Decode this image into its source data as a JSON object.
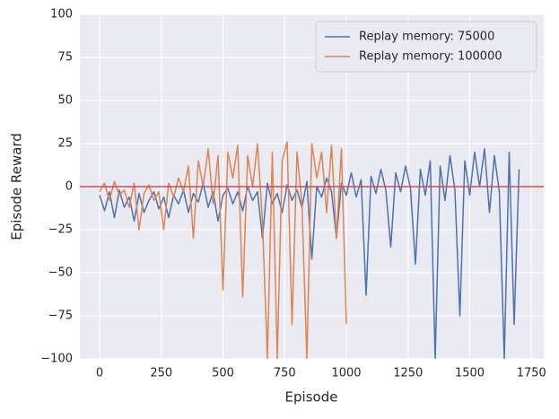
{
  "chart_data": {
    "type": "line",
    "xlabel": "Episode",
    "ylabel": "Episode Reward",
    "xlim": [
      -80,
      1800
    ],
    "ylim": [
      -100,
      100
    ],
    "xticks": [
      0,
      250,
      500,
      750,
      1000,
      1250,
      1500,
      1750
    ],
    "yticks": [
      {
        "value": -100,
        "label": "−100"
      },
      {
        "value": -75,
        "label": "−75"
      },
      {
        "value": -50,
        "label": "−50"
      },
      {
        "value": -25,
        "label": "−25"
      },
      0,
      25,
      50,
      75,
      100
    ],
    "grid": true,
    "legend": "upper right",
    "hline": {
      "value": 0,
      "color": "#c44e52"
    },
    "series": [
      {
        "name": "Replay memory: 75000",
        "color": "#4c72b0",
        "x": [
          0,
          20,
          40,
          60,
          80,
          100,
          120,
          140,
          160,
          180,
          200,
          220,
          240,
          260,
          280,
          300,
          320,
          340,
          360,
          380,
          400,
          420,
          440,
          460,
          480,
          500,
          520,
          540,
          560,
          580,
          600,
          620,
          640,
          660,
          680,
          700,
          720,
          740,
          760,
          780,
          800,
          820,
          840,
          860,
          880,
          900,
          920,
          940,
          960,
          980,
          1000,
          1020,
          1040,
          1060,
          1080,
          1100,
          1120,
          1140,
          1160,
          1180,
          1200,
          1220,
          1240,
          1260,
          1280,
          1300,
          1320,
          1340,
          1360,
          1380,
          1400,
          1420,
          1440,
          1460,
          1480,
          1500,
          1520,
          1540,
          1560,
          1580,
          1600,
          1620,
          1640,
          1660,
          1680,
          1700
        ],
        "values": [
          -5,
          -14,
          -3,
          -18,
          -2,
          -12,
          -6,
          -20,
          -4,
          -15,
          -8,
          -3,
          -13,
          -6,
          -18,
          -5,
          -10,
          -2,
          -15,
          -4,
          -9,
          2,
          -12,
          -3,
          -20,
          -5,
          -1,
          -10,
          -3,
          -14,
          0,
          -8,
          -3,
          -30,
          2,
          -10,
          -4,
          -15,
          1,
          -8,
          -2,
          -12,
          3,
          -42,
          0,
          -6,
          5,
          -3,
          -30,
          2,
          -5,
          8,
          -6,
          4,
          -63,
          6,
          -4,
          10,
          -2,
          -35,
          8,
          -3,
          12,
          -1,
          -45,
          10,
          -5,
          15,
          -100,
          12,
          -8,
          18,
          -2,
          -75,
          15,
          -5,
          20,
          0,
          22,
          -15,
          18,
          -3,
          -100,
          20,
          -80,
          10
        ]
      },
      {
        "name": "Replay memory: 100000",
        "color": "#dd8452",
        "x": [
          0,
          20,
          40,
          60,
          80,
          100,
          120,
          140,
          160,
          180,
          200,
          220,
          240,
          260,
          280,
          300,
          320,
          340,
          360,
          380,
          400,
          420,
          440,
          460,
          480,
          500,
          520,
          540,
          560,
          580,
          600,
          620,
          640,
          660,
          680,
          700,
          720,
          740,
          760,
          780,
          800,
          820,
          840,
          860,
          880,
          900,
          920,
          940,
          960,
          980,
          1000
        ],
        "values": [
          -3,
          2,
          -8,
          3,
          -5,
          -2,
          -12,
          2,
          -25,
          -4,
          1,
          -8,
          -3,
          -25,
          2,
          -6,
          5,
          -3,
          12,
          -30,
          15,
          0,
          22,
          -10,
          18,
          -60,
          20,
          5,
          24,
          -64,
          18,
          0,
          25,
          -20,
          -100,
          20,
          -100,
          15,
          26,
          -80,
          20,
          -10,
          -100,
          25,
          5,
          20,
          -15,
          24,
          -30,
          22,
          -80
        ]
      }
    ]
  }
}
